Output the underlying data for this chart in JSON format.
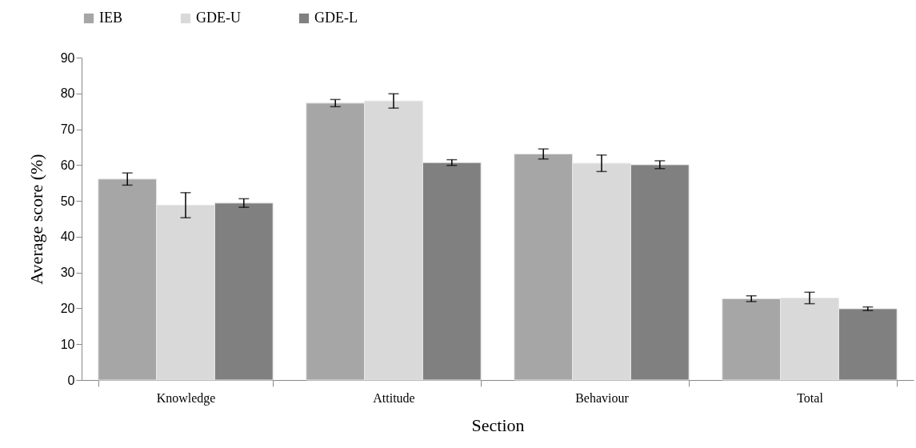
{
  "chart_data": {
    "type": "bar",
    "xlabel": "Section",
    "ylabel": "Average score (%)",
    "categories": [
      "Knowledge",
      "Attitude",
      "Behaviour",
      "Total"
    ],
    "series": [
      {
        "name": "IEB",
        "color": "#a6a6a6",
        "values": [
          56.1,
          77.3,
          63.1,
          22.7
        ],
        "errors": [
          1.7,
          1.0,
          1.4,
          0.8
        ]
      },
      {
        "name": "GDE-U",
        "color": "#d9d9d9",
        "values": [
          48.8,
          77.9,
          60.5,
          22.9
        ],
        "errors": [
          3.5,
          2.0,
          2.3,
          1.6
        ]
      },
      {
        "name": "GDE-L",
        "color": "#808080",
        "values": [
          49.4,
          60.7,
          60.1,
          19.9
        ],
        "errors": [
          1.2,
          0.8,
          1.1,
          0.5
        ]
      }
    ],
    "ylim": [
      0,
      90
    ],
    "yticks": [
      0,
      10,
      20,
      30,
      40,
      50,
      60,
      70,
      80,
      90
    ],
    "grid": false,
    "legend": "top"
  }
}
